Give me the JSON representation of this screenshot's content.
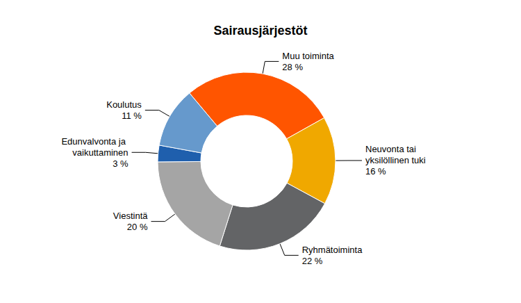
{
  "chart_data": {
    "type": "pie",
    "title": "Sairausjärjestöt",
    "categories": [
      "Muu toiminta",
      "Neuvonta tai yksilöllinen tuki",
      "Ryhmätoiminta",
      "Viestintä",
      "Edunvalvonta ja vaikuttaminen",
      "Koulutus"
    ],
    "values": [
      28,
      16,
      22,
      20,
      3,
      11
    ],
    "value_labels": [
      "28 %",
      "16 %",
      "22 %",
      "20 %",
      "3 %",
      "11 %"
    ],
    "colors": [
      "#ff5500",
      "#f0a800",
      "#636466",
      "#a5a5a5",
      "#1f5fad",
      "#6699cc"
    ],
    "data_labels": true
  }
}
